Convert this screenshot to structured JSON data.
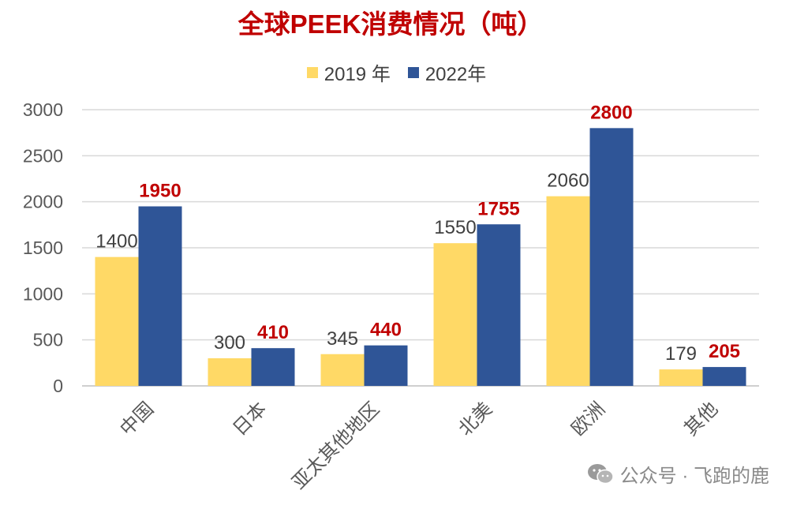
{
  "chart_data": {
    "type": "bar",
    "title": "全球PEEK消费情况（吨）",
    "categories": [
      "中国",
      "日本",
      "亚太其他地区",
      "北美",
      "欧洲",
      "其他"
    ],
    "series": [
      {
        "name": "2019 年",
        "values": [
          1400,
          300,
          345,
          1550,
          2060,
          179
        ],
        "labels": [
          "1400",
          "300",
          "345",
          "1550",
          "2060",
          "179"
        ]
      },
      {
        "name": "2022年",
        "values": [
          1950,
          410,
          440,
          1755,
          2800,
          205
        ],
        "labels": [
          "1950",
          "410",
          "440",
          "1755",
          "2800",
          "205"
        ]
      }
    ],
    "yticks": [
      "0",
      "500",
      "1000",
      "1500",
      "2000",
      "2500",
      "3000"
    ],
    "ylim": [
      0,
      3000
    ],
    "grid": true,
    "legend_position": "top-center"
  },
  "colors": {
    "title": "#C00000",
    "series_2019": "#FFD966",
    "series_2022": "#2F5597",
    "label_2019": "#404040",
    "label_2022": "#C00000",
    "axis_text": "#595959",
    "grid": "#D9D9D9"
  },
  "watermark": {
    "icon": "wechat-icon",
    "text": "公众号 · 飞跑的鹿"
  }
}
